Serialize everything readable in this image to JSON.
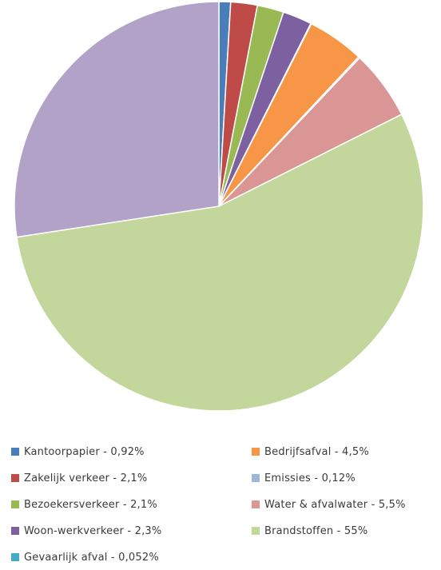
{
  "chart_data": {
    "type": "pie",
    "title": "",
    "start_angle_deg": 0,
    "direction": "clockwise",
    "slices": [
      {
        "label": "Kantoorpapier - 0,92%",
        "name": "Kantoorpapier",
        "value": 0.92,
        "color": "#4a7ebb"
      },
      {
        "label": "Zakelijk verkeer - 2,1%",
        "name": "Zakelijk verkeer",
        "value": 2.1,
        "color": "#be4b48"
      },
      {
        "label": "Bezoekersverkeer - 2,1%",
        "name": "Bezoekersverkeer",
        "value": 2.1,
        "color": "#98b954"
      },
      {
        "label": "Woon-werkverkeer - 2,3%",
        "name": "Woon-werkverkeer",
        "value": 2.3,
        "color": "#7d60a0"
      },
      {
        "label": "Gevaarlijk afval - 0,052%",
        "name": "Gevaarlijk afval",
        "value": 0.052,
        "color": "#46aac5"
      },
      {
        "label": "Bedrijfsafval - 4,5%",
        "name": "Bedrijfsafval",
        "value": 4.5,
        "color": "#f79646"
      },
      {
        "label": "Emissies - 0,12%",
        "name": "Emissies",
        "value": 0.12,
        "color": "#9cb9d8"
      },
      {
        "label": "Water & afvalwater - 5,5%",
        "name": "Water & afvalwater",
        "value": 5.5,
        "color": "#d99694"
      },
      {
        "label": "Brandstoffen - 55%",
        "name": "Brandstoffen",
        "value": 55,
        "color": "#c3d69b"
      },
      {
        "label": "",
        "name": "",
        "value": 27.408,
        "color": "#b3a2c7"
      }
    ],
    "legend": {
      "placement": "bottom",
      "columns": [
        [
          "Kantoorpapier - 0,92%",
          "Zakelijk verkeer - 2,1%",
          "Bezoekersverkeer - 2,1%",
          "Woon-werkverkeer - 2,3%",
          "Gevaarlijk afval - 0,052%"
        ],
        [
          "Bedrijfsafval - 4,5%",
          "Emissies - 0,12%",
          "Water & afvalwater - 5,5%",
          "Brandstoffen - 55%"
        ]
      ]
    }
  }
}
